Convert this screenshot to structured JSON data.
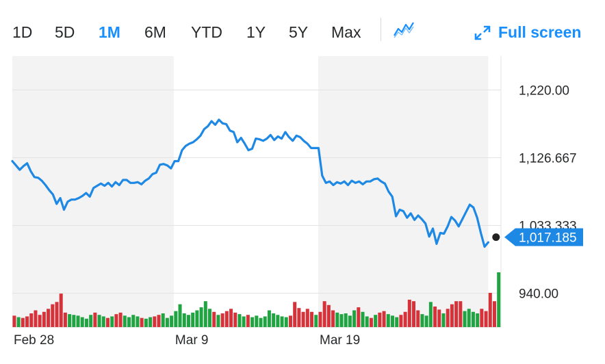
{
  "toolbar": {
    "ranges": [
      "1D",
      "5D",
      "1M",
      "6M",
      "YTD",
      "1Y",
      "5Y",
      "Max"
    ],
    "active_range": "1M",
    "chart_type_icon": "line-chart-icon",
    "fullscreen_label": "Full screen",
    "fullscreen_icon": "expand-arrows-icon"
  },
  "colors": {
    "accent": "#188fff",
    "line": "#1e88e5",
    "up": "#20a442",
    "down": "#d6323a",
    "shade": "#f3f3f3"
  },
  "current_price_label": "1,017.185",
  "chart_data": {
    "type": "line",
    "y_ticks": [
      "1,220.00",
      "1,126.667",
      "1,033.333",
      "940.00"
    ],
    "y_tick_values": [
      1220,
      1126.667,
      1033.333,
      940
    ],
    "ylim": [
      893.33,
      1266.67
    ],
    "x_ticks": [
      {
        "label": "Feb 28",
        "index": 0
      },
      {
        "label": "Mar 9",
        "index": 38
      },
      {
        "label": "Mar 19",
        "index": 72
      }
    ],
    "shaded_bands": [
      [
        0,
        38
      ],
      [
        72,
        112
      ]
    ],
    "price_series": [
      1122,
      1116,
      1110,
      1115,
      1119,
      1108,
      1100,
      1099,
      1095,
      1089,
      1082,
      1076,
      1063,
      1071,
      1055,
      1066,
      1069,
      1069,
      1071,
      1074,
      1078,
      1073,
      1085,
      1088,
      1091,
      1088,
      1092,
      1087,
      1093,
      1089,
      1096,
      1096,
      1092,
      1092,
      1093,
      1090,
      1095,
      1098,
      1104,
      1106,
      1117,
      1118,
      1116,
      1112,
      1122,
      1122,
      1137,
      1143,
      1146,
      1148,
      1152,
      1157,
      1166,
      1170,
      1177,
      1172,
      1179,
      1174,
      1173,
      1164,
      1162,
      1148,
      1154,
      1146,
      1137,
      1139,
      1153,
      1152,
      1150,
      1153,
      1158,
      1151,
      1156,
      1153,
      1162,
      1155,
      1150,
      1157,
      1155,
      1150,
      1146,
      1140,
      1140,
      1140,
      1102,
      1092,
      1094,
      1089,
      1093,
      1091,
      1094,
      1089,
      1095,
      1092,
      1094,
      1090,
      1094,
      1094,
      1097,
      1098,
      1094,
      1091,
      1080,
      1073,
      1046,
      1055,
      1053,
      1044,
      1050,
      1041,
      1047,
      1042,
      1036,
      1018,
      1029,
      1008,
      1023,
      1022,
      1032,
      1045,
      1040,
      1032,
      1042,
      1052,
      1062,
      1058,
      1044,
      1023,
      1004,
      1010
    ],
    "volume_series": [
      {
        "v": 15,
        "d": "down"
      },
      {
        "v": 13,
        "d": "up"
      },
      {
        "v": 12,
        "d": "down"
      },
      {
        "v": 14,
        "d": "down"
      },
      {
        "v": 18,
        "d": "down"
      },
      {
        "v": 22,
        "d": "down"
      },
      {
        "v": 16,
        "d": "down"
      },
      {
        "v": 20,
        "d": "down"
      },
      {
        "v": 24,
        "d": "down"
      },
      {
        "v": 30,
        "d": "down"
      },
      {
        "v": 33,
        "d": "down"
      },
      {
        "v": 44,
        "d": "down"
      },
      {
        "v": 19,
        "d": "down"
      },
      {
        "v": 17,
        "d": "up"
      },
      {
        "v": 16,
        "d": "up"
      },
      {
        "v": 15,
        "d": "up"
      },
      {
        "v": 13,
        "d": "up"
      },
      {
        "v": 11,
        "d": "up"
      },
      {
        "v": 16,
        "d": "up"
      },
      {
        "v": 19,
        "d": "down"
      },
      {
        "v": 16,
        "d": "up"
      },
      {
        "v": 14,
        "d": "up"
      },
      {
        "v": 12,
        "d": "down"
      },
      {
        "v": 14,
        "d": "up"
      },
      {
        "v": 17,
        "d": "down"
      },
      {
        "v": 19,
        "d": "down"
      },
      {
        "v": 15,
        "d": "up"
      },
      {
        "v": 13,
        "d": "up"
      },
      {
        "v": 16,
        "d": "up"
      },
      {
        "v": 14,
        "d": "up"
      },
      {
        "v": 12,
        "d": "down"
      },
      {
        "v": 11,
        "d": "up"
      },
      {
        "v": 13,
        "d": "up"
      },
      {
        "v": 14,
        "d": "down"
      },
      {
        "v": 16,
        "d": "down"
      },
      {
        "v": 18,
        "d": "up"
      },
      {
        "v": 12,
        "d": "up"
      },
      {
        "v": 15,
        "d": "up"
      },
      {
        "v": 21,
        "d": "up"
      },
      {
        "v": 30,
        "d": "up"
      },
      {
        "v": 18,
        "d": "up"
      },
      {
        "v": 16,
        "d": "up"
      },
      {
        "v": 19,
        "d": "up"
      },
      {
        "v": 22,
        "d": "up"
      },
      {
        "v": 26,
        "d": "up"
      },
      {
        "v": 34,
        "d": "up"
      },
      {
        "v": 24,
        "d": "up"
      },
      {
        "v": 20,
        "d": "down"
      },
      {
        "v": 16,
        "d": "up"
      },
      {
        "v": 18,
        "d": "down"
      },
      {
        "v": 21,
        "d": "down"
      },
      {
        "v": 24,
        "d": "down"
      },
      {
        "v": 19,
        "d": "down"
      },
      {
        "v": 17,
        "d": "up"
      },
      {
        "v": 14,
        "d": "up"
      },
      {
        "v": 16,
        "d": "down"
      },
      {
        "v": 13,
        "d": "up"
      },
      {
        "v": 15,
        "d": "up"
      },
      {
        "v": 12,
        "d": "up"
      },
      {
        "v": 14,
        "d": "up"
      },
      {
        "v": 22,
        "d": "up"
      },
      {
        "v": 18,
        "d": "up"
      },
      {
        "v": 16,
        "d": "up"
      },
      {
        "v": 14,
        "d": "up"
      },
      {
        "v": 13,
        "d": "up"
      },
      {
        "v": 15,
        "d": "down"
      },
      {
        "v": 33,
        "d": "down"
      },
      {
        "v": 25,
        "d": "down"
      },
      {
        "v": 20,
        "d": "down"
      },
      {
        "v": 24,
        "d": "down"
      },
      {
        "v": 20,
        "d": "down"
      },
      {
        "v": 16,
        "d": "up"
      },
      {
        "v": 20,
        "d": "down"
      },
      {
        "v": 34,
        "d": "down"
      },
      {
        "v": 29,
        "d": "down"
      },
      {
        "v": 22,
        "d": "down"
      },
      {
        "v": 19,
        "d": "up"
      },
      {
        "v": 17,
        "d": "up"
      },
      {
        "v": 18,
        "d": "up"
      },
      {
        "v": 15,
        "d": "up"
      },
      {
        "v": 22,
        "d": "up"
      },
      {
        "v": 26,
        "d": "down"
      },
      {
        "v": 20,
        "d": "up"
      },
      {
        "v": 14,
        "d": "up"
      },
      {
        "v": 12,
        "d": "down"
      },
      {
        "v": 16,
        "d": "up"
      },
      {
        "v": 19,
        "d": "down"
      },
      {
        "v": 21,
        "d": "down"
      },
      {
        "v": 17,
        "d": "up"
      },
      {
        "v": 15,
        "d": "up"
      },
      {
        "v": 13,
        "d": "up"
      },
      {
        "v": 16,
        "d": "down"
      },
      {
        "v": 20,
        "d": "down"
      },
      {
        "v": 36,
        "d": "down"
      },
      {
        "v": 34,
        "d": "down"
      },
      {
        "v": 22,
        "d": "down"
      },
      {
        "v": 17,
        "d": "up"
      },
      {
        "v": 15,
        "d": "up"
      },
      {
        "v": 33,
        "d": "up"
      },
      {
        "v": 27,
        "d": "down"
      },
      {
        "v": 23,
        "d": "down"
      },
      {
        "v": 18,
        "d": "up"
      },
      {
        "v": 24,
        "d": "down"
      },
      {
        "v": 30,
        "d": "down"
      },
      {
        "v": 34,
        "d": "down"
      },
      {
        "v": 34,
        "d": "down"
      },
      {
        "v": 21,
        "d": "up"
      },
      {
        "v": 24,
        "d": "up"
      },
      {
        "v": 20,
        "d": "up"
      },
      {
        "v": 18,
        "d": "up"
      },
      {
        "v": 24,
        "d": "down"
      },
      {
        "v": 21,
        "d": "down"
      },
      {
        "v": 45,
        "d": "down"
      },
      {
        "v": 34,
        "d": "down"
      },
      {
        "v": 72,
        "d": "up"
      }
    ],
    "grid": true
  }
}
